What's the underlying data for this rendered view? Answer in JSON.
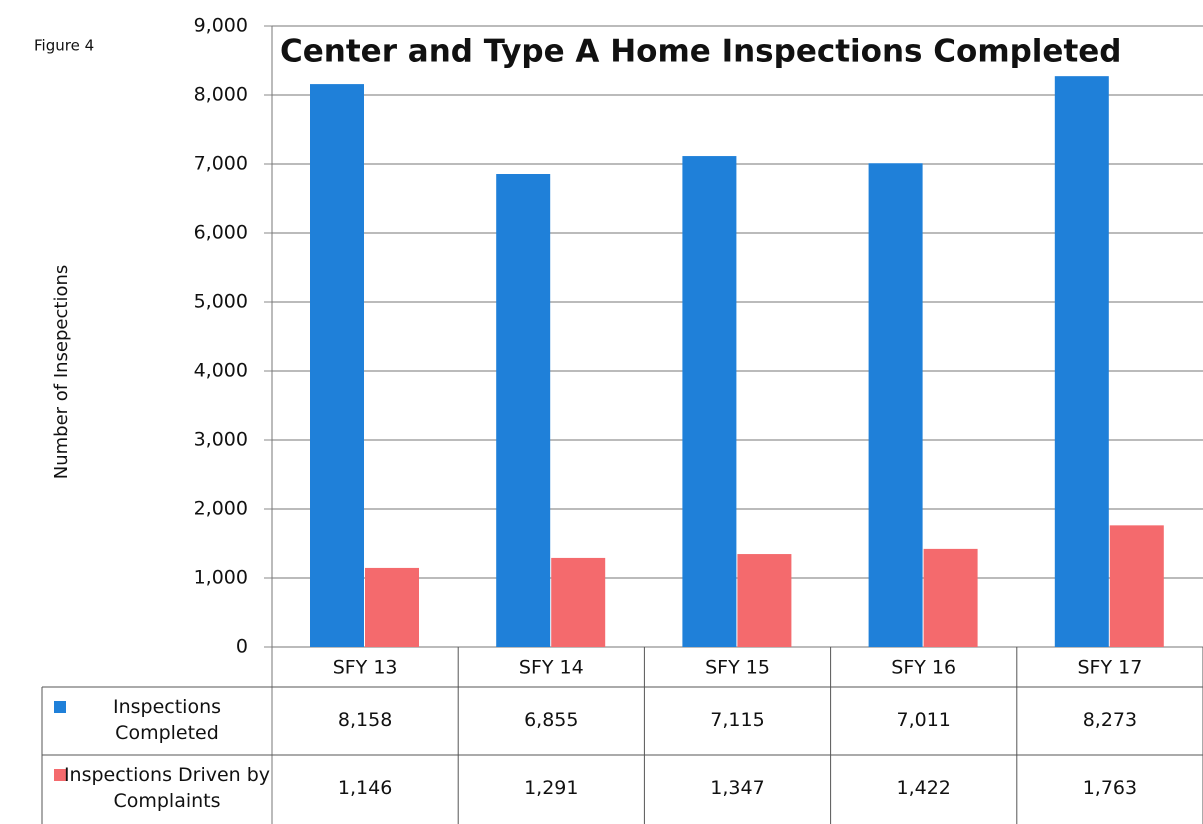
{
  "chart_data": {
    "type": "bar",
    "title": "Center and Type A Home Inspections Completed",
    "figure_label": "Figure 4",
    "y_label": "Number of Insepections",
    "categories": [
      "SFY 13",
      "SFY 14",
      "SFY 15",
      "SFY 16",
      "SFY 17"
    ],
    "series": [
      {
        "name": "Inspections Completed",
        "color": "#1f80d9",
        "values": [
          8158,
          6855,
          7115,
          7011,
          8273
        ],
        "value_labels": [
          "8,158",
          "6,855",
          "7,115",
          "7,011",
          "8,273"
        ]
      },
      {
        "name": "Inspections Driven by Complaints",
        "color": "#f46a6d",
        "values": [
          1146,
          1291,
          1347,
          1422,
          1763
        ],
        "value_labels": [
          "1,146",
          "1,291",
          "1,347",
          "1,422",
          "1,763"
        ]
      }
    ],
    "ylim": [
      0,
      9000
    ],
    "yticks": [
      0,
      {
        "value": 1000,
        "label": "1,000"
      },
      {
        "value": 2000,
        "label": "2,000"
      },
      {
        "value": 3000,
        "label": "3,000"
      },
      {
        "value": 4000,
        "label": "4,000"
      },
      {
        "value": 5000,
        "label": "5,000"
      },
      {
        "value": 6000,
        "label": "6,000"
      },
      {
        "value": 7000,
        "label": "7,000"
      },
      {
        "value": 8000,
        "label": "8,000"
      },
      {
        "value": 9000,
        "label": "9,000"
      }
    ],
    "grid": true
  }
}
